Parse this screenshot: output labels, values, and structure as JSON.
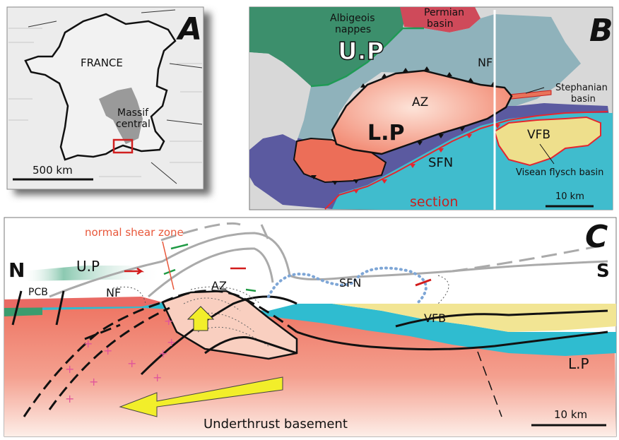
{
  "panel_a": {
    "letter": "A",
    "country": "FRANCE",
    "region_line1": "Massif",
    "region_line2": "central",
    "scale": "500 km",
    "colors": {
      "land": "#ececec",
      "massif": "#9a9a9a",
      "locator": "#d11f1f"
    }
  },
  "panel_b": {
    "letter": "B",
    "albigeois_line1": "Albigeois",
    "albigeois_line2": "nappes",
    "permian_line1": "Permian",
    "permian_line2": "basin",
    "up": "U.P",
    "nf": "NF",
    "az": "AZ",
    "lp": "L.P",
    "stephanian_line1": "Stephanian",
    "stephanian_line2": "basin",
    "vfb": "VFB",
    "sfn": "SFN",
    "visean": "Visean flysch basin",
    "section": "section",
    "scale": "10 km",
    "colors": {
      "albigeois": "#3c8f6c",
      "permian": "#cf4a5a",
      "nf": "#8fb2bb",
      "az": "#f6b49c",
      "sfn": "#40bccd",
      "purple": "#5b5aa0",
      "vfb": "#eedf8c",
      "section": "#c81f1f"
    }
  },
  "panel_c": {
    "letter": "C",
    "north": "N",
    "south": "S",
    "up": "U.P",
    "pcb": "PCB",
    "nf": "NF",
    "az": "AZ",
    "sfn": "SFN",
    "vfb": "VFB",
    "lp": "L.P",
    "normal_shear_zone": "normal shear zone",
    "underthrust": "Underthrust basement",
    "scale": "10 km",
    "colors": {
      "basement_top": "#f07a67",
      "basement_bottom": "#fde7de",
      "cyan": "#2fbcd0",
      "vfb": "#f2e594",
      "arrow": "#f2ee2a",
      "shear_label": "#e8573a",
      "red_arrow": "#d21b1b",
      "green_arrow": "#1f9a44"
    }
  }
}
